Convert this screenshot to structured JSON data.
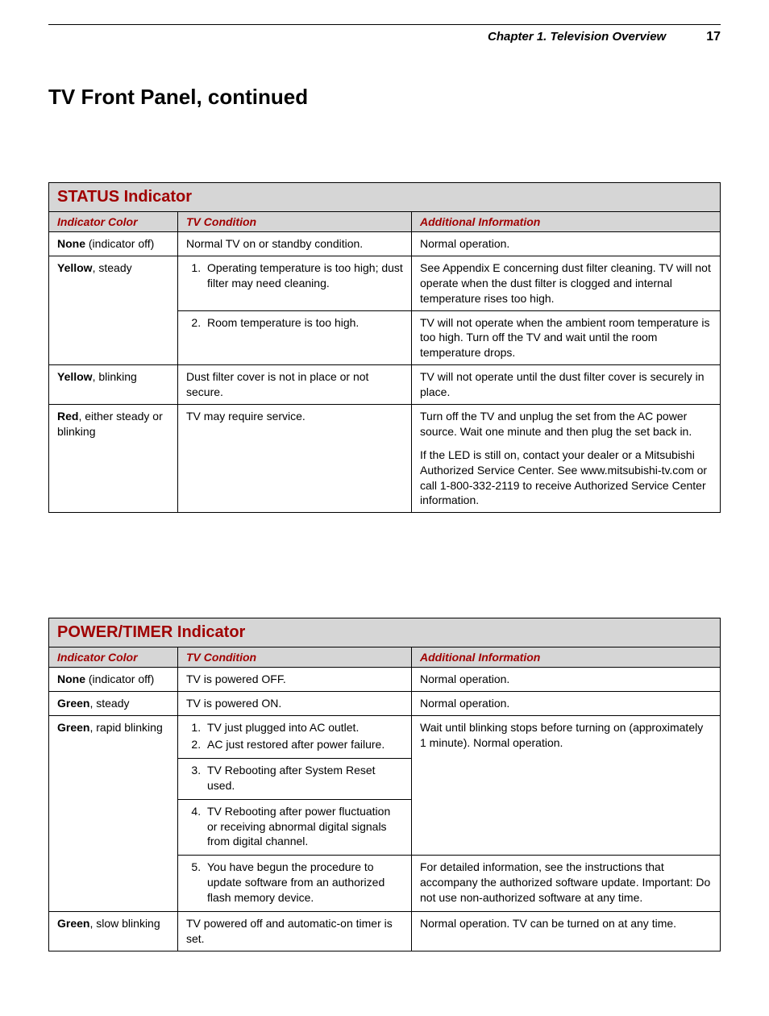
{
  "header": {
    "chapter": "Chapter 1. Television Overview",
    "page_number": "17"
  },
  "page_title": "TV Front Panel, continued",
  "colors": {
    "accent": "#a00000",
    "header_bg": "#d6d6d6",
    "border": "#000000",
    "text": "#000000",
    "background": "#ffffff"
  },
  "status_table": {
    "title": "STATUS Indicator",
    "columns": [
      "Indicator Color",
      "TV Condition",
      "Additional Information"
    ],
    "rows": {
      "none": {
        "label_bold": "None",
        "label_rest": " (indicator off)",
        "condition": "Normal TV on or standby condition.",
        "info": "Normal operation."
      },
      "yellow_steady": {
        "label_bold": "Yellow",
        "label_rest": ", steady",
        "cond1": "Operating temperature is too high; dust filter may need cleaning.",
        "cond2": "Room temperature is too high.",
        "info1": "See Appendix E concerning dust filter cleaning.  TV will not operate when the dust filter is clogged and internal temperature rises too high.",
        "info2": "TV will not operate when the ambient room temperature is too high.  Turn off the TV and wait until the room temperature drops."
      },
      "yellow_blinking": {
        "label_bold": "Yellow",
        "label_rest": ", blinking",
        "condition": "Dust filter cover is not in place or not secure.",
        "info": "TV will not operate until the dust filter cover is securely in place."
      },
      "red": {
        "label_bold": "Red",
        "label_rest": ", either steady or blinking",
        "condition": "TV may require service.",
        "info_p1": "Turn off the TV and unplug the set from the AC power source.  Wait one minute and then plug the set back in.",
        "info_p2": "If the LED is still on, contact your dealer or a Mitsubishi Authorized Service Center.  See www.mitsubishi-tv.com or call 1-800-332-2119 to receive Authorized Service Center information."
      }
    }
  },
  "power_table": {
    "title": "POWER/TIMER Indicator",
    "columns": [
      "Indicator Color",
      "TV Condition",
      "Additional Information"
    ],
    "rows": {
      "none": {
        "label_bold": "None",
        "label_rest": " (indicator off)",
        "condition": "TV is powered OFF.",
        "info": "Normal operation."
      },
      "green_steady": {
        "label_bold": "Green",
        "label_rest": ", steady",
        "condition": "TV is powered ON.",
        "info": "Normal operation."
      },
      "green_rapid": {
        "label_bold": "Green",
        "label_rest": ", rapid blinking",
        "cond1": "TV just plugged into AC outlet.",
        "cond2": "AC just restored after power failure.",
        "cond3": "TV Rebooting after System Reset used.",
        "cond4": "TV Rebooting after power fluctuation or receiving abnormal digital signals from digital channel.",
        "cond5": "You have begun the procedure to update software from an authorized flash memory device.",
        "info1": "Wait until blinking stops before turning on (approximately 1 minute).  Normal operation.",
        "info2": "For detailed information, see the instructions that accompany the authorized software update.  Important:  Do not use non-authorized software at any time."
      },
      "green_slow": {
        "label_bold": "Green",
        "label_rest": ", slow blinking",
        "condition": "TV powered off and automatic-on timer is set.",
        "info": "Normal operation.  TV can be turned on at any time."
      }
    }
  }
}
